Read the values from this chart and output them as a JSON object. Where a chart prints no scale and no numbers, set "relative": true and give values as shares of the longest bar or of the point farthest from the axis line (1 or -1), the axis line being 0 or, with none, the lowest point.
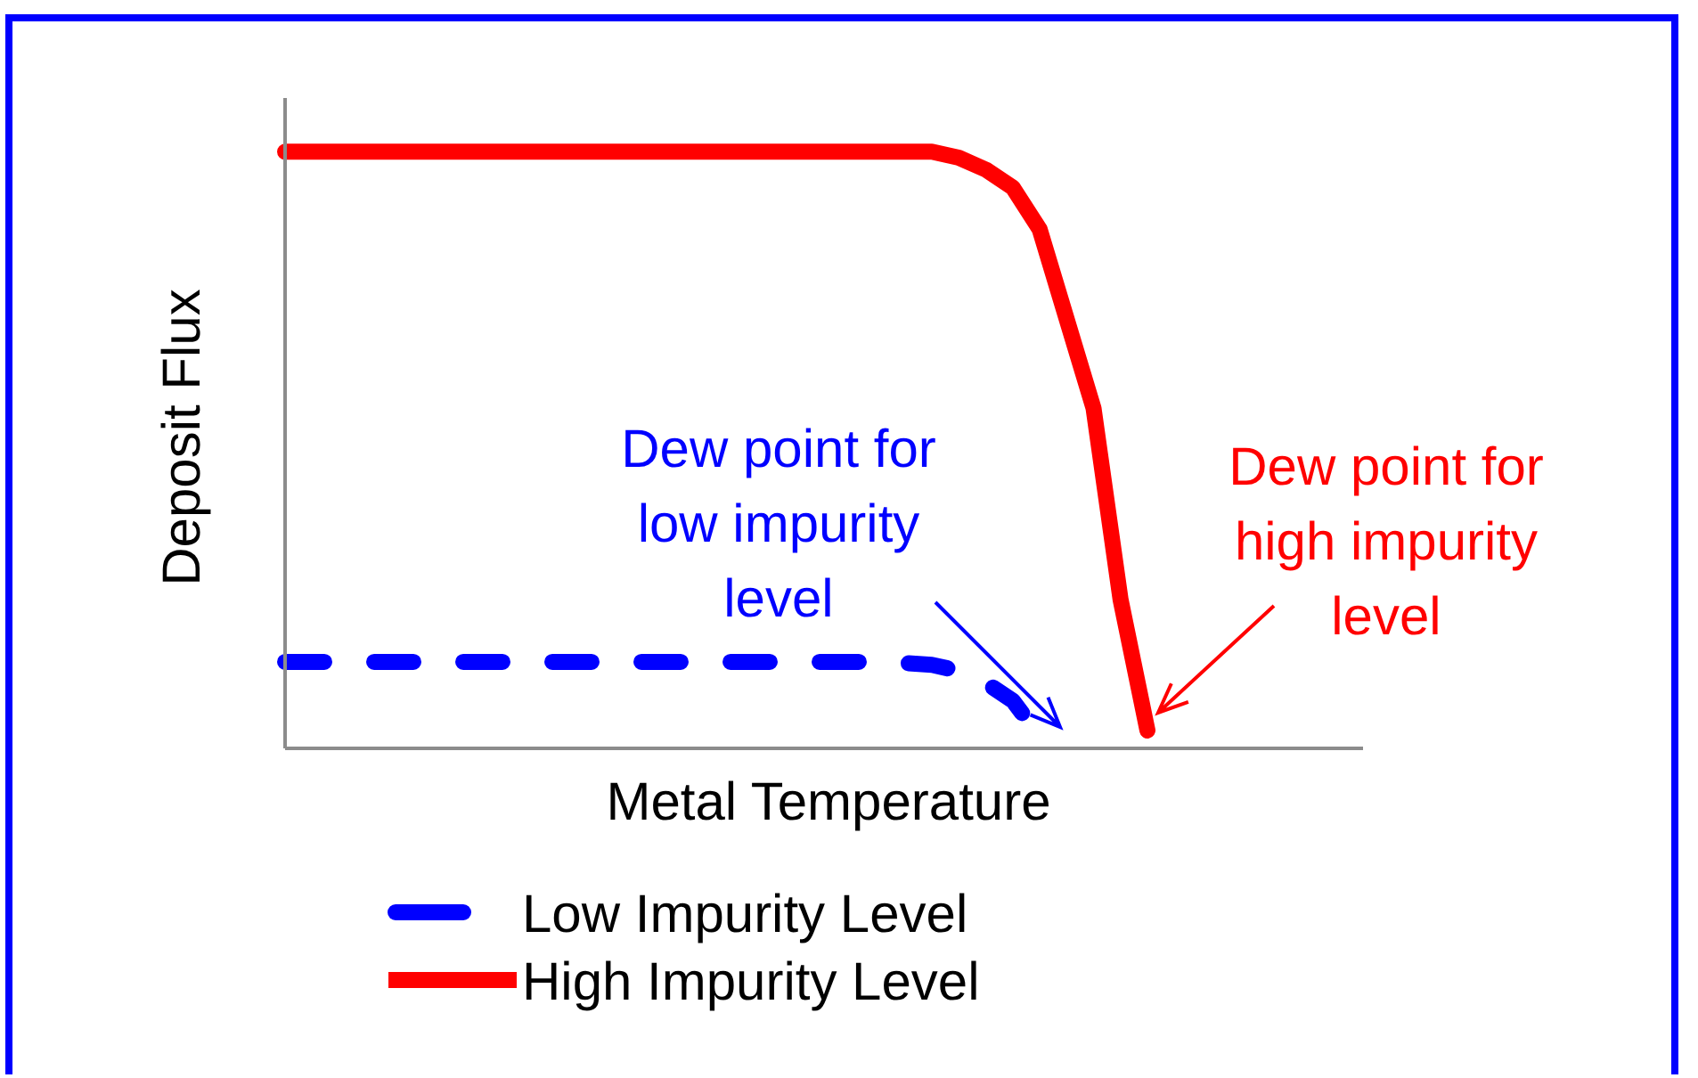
{
  "chart_data": {
    "type": "line",
    "relative": true,
    "xlabel": "Metal Temperature",
    "ylabel": "Deposit Flux",
    "categories": [
      null,
      null,
      null,
      null,
      null,
      null,
      null,
      null,
      null,
      null,
      null,
      null,
      null,
      null,
      null,
      null,
      null,
      null,
      null,
      null,
      null,
      null,
      null,
      null,
      null,
      null,
      null,
      null,
      null,
      null,
      null,
      null,
      null,
      null,
      null,
      null,
      null,
      null,
      null,
      null,
      null
    ],
    "series": [
      {
        "name": "Low Impurity Level",
        "color": "#0000ff",
        "line_style": "dashed",
        "values": [
          0.145,
          0.145,
          0.145,
          0.145,
          0.145,
          0.145,
          0.145,
          0.145,
          0.145,
          0.145,
          0.145,
          0.145,
          0.145,
          0.145,
          0.145,
          0.145,
          0.145,
          0.145,
          0.145,
          0.145,
          0.145,
          0.145,
          0.145,
          0.143,
          0.14,
          0.13,
          0.11,
          0.08,
          0.02,
          null,
          null,
          null,
          null,
          null,
          null,
          null,
          null,
          null,
          null,
          null,
          null
        ]
      },
      {
        "name": "High Impurity Level",
        "color": "#ff0000",
        "line_style": "solid",
        "values": [
          1,
          1,
          1,
          1,
          1,
          1,
          1,
          1,
          1,
          1,
          1,
          1,
          1,
          1,
          1,
          1,
          1,
          1,
          1,
          1,
          1,
          1,
          1,
          1,
          1,
          0.99,
          0.97,
          0.94,
          0.87,
          0.72,
          0.57,
          0.25,
          0.03,
          null,
          null,
          null,
          null,
          null,
          null,
          null,
          null
        ]
      }
    ],
    "annotations": [
      "Dew point for low impurity level",
      "Dew point for high impurity level"
    ],
    "legend": "bottom",
    "grid": false,
    "marker": "none"
  }
}
